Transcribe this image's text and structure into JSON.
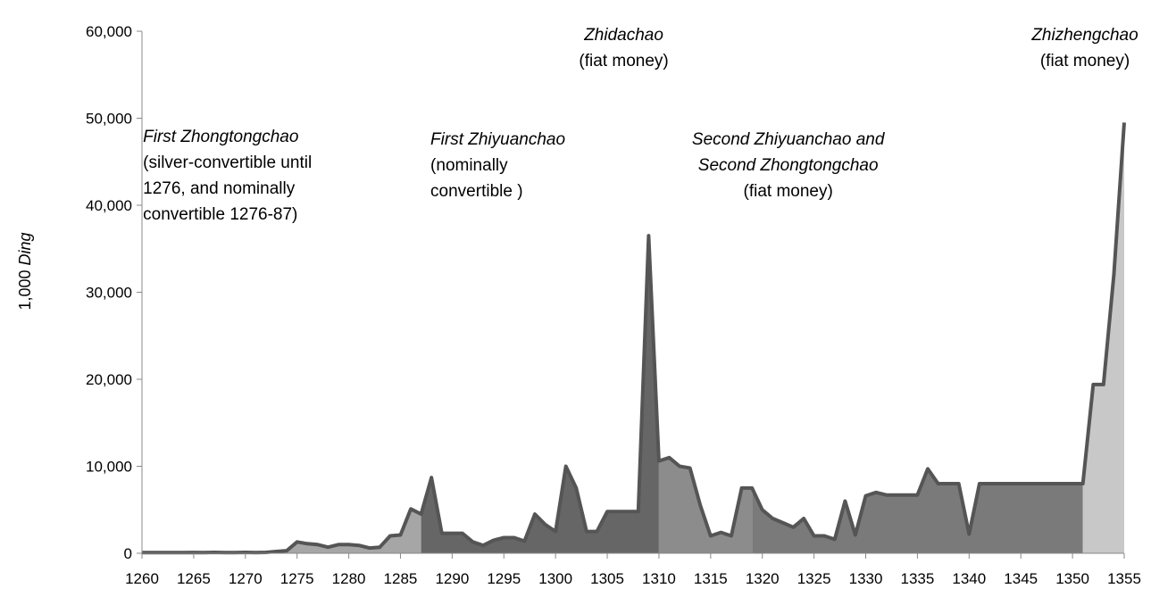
{
  "chart_data": {
    "type": "area",
    "ylabel_prefix": "1,000 ",
    "ylabel_italic": "Ding",
    "xlim": [
      1260,
      1355
    ],
    "ylim": [
      0,
      60000
    ],
    "x_ticks": [
      1260,
      1265,
      1270,
      1275,
      1280,
      1285,
      1290,
      1295,
      1300,
      1305,
      1310,
      1315,
      1320,
      1325,
      1330,
      1335,
      1340,
      1345,
      1350,
      1355
    ],
    "y_ticks": [
      "0",
      "10,000",
      "20,000",
      "30,000",
      "40,000",
      "50,000",
      "60,000"
    ],
    "y_tick_values": [
      0,
      10000,
      20000,
      30000,
      40000,
      50000,
      60000
    ],
    "grid": false,
    "line_color": "#555555",
    "x": [
      1260,
      1261,
      1262,
      1263,
      1264,
      1265,
      1266,
      1267,
      1268,
      1269,
      1270,
      1271,
      1272,
      1273,
      1274,
      1275,
      1276,
      1277,
      1278,
      1279,
      1280,
      1281,
      1282,
      1283,
      1284,
      1285,
      1286,
      1287,
      1288,
      1289,
      1290,
      1291,
      1292,
      1293,
      1294,
      1295,
      1296,
      1297,
      1298,
      1299,
      1300,
      1301,
      1302,
      1303,
      1304,
      1305,
      1306,
      1307,
      1308,
      1309,
      1310,
      1311,
      1312,
      1313,
      1314,
      1315,
      1316,
      1317,
      1318,
      1319,
      1320,
      1321,
      1322,
      1323,
      1324,
      1325,
      1326,
      1327,
      1328,
      1329,
      1330,
      1331,
      1332,
      1333,
      1334,
      1335,
      1336,
      1337,
      1338,
      1339,
      1340,
      1341,
      1342,
      1343,
      1344,
      1345,
      1346,
      1347,
      1348,
      1349,
      1350,
      1351,
      1352,
      1353,
      1354,
      1355
    ],
    "values": [
      74,
      74,
      74,
      74,
      74,
      96,
      74,
      100,
      74,
      74,
      100,
      74,
      100,
      200,
      300,
      1300,
      1100,
      1000,
      700,
      1000,
      1000,
      900,
      600,
      700,
      2000,
      2100,
      5100,
      4500,
      8700,
      2300,
      2300,
      2300,
      1300,
      900,
      1500,
      1800,
      1800,
      1400,
      4500,
      3300,
      2500,
      10000,
      7500,
      2500,
      2500,
      4800,
      4800,
      4800,
      4800,
      36500,
      10600,
      11000,
      10000,
      9800,
      5500,
      2000,
      2400,
      2000,
      7500,
      7500,
      5000,
      4000,
      3500,
      3000,
      4000,
      2000,
      2000,
      1600,
      6000,
      2100,
      6600,
      7000,
      6700,
      6700,
      6700,
      6700,
      9700,
      8000,
      8000,
      8000,
      2200,
      8000,
      8000,
      8000,
      8000,
      8000,
      8000,
      8000,
      8000,
      8000,
      8000,
      8000,
      19400,
      19400,
      32000,
      49500
    ],
    "regions": [
      {
        "from": 1260,
        "to": 1287,
        "fill": "#a6a6a6"
      },
      {
        "from": 1287,
        "to": 1310,
        "fill": "#666666"
      },
      {
        "from": 1310,
        "to": 1319,
        "fill": "#8c8c8c"
      },
      {
        "from": 1319,
        "to": 1351,
        "fill": "#7a7a7a"
      },
      {
        "from": 1351,
        "to": 1355,
        "fill": "#c8c8c8"
      }
    ],
    "annotations": [
      {
        "name": "annotation-first-zhongtongchao",
        "x": 1260.1,
        "y": 47300,
        "anchor": "start",
        "lines": [
          {
            "text": "First Zhongtongchao",
            "italic": true
          },
          {
            "text": "(silver-convertible until",
            "italic": false
          },
          {
            "text": "1276, and nominally",
            "italic": false
          },
          {
            "text": "convertible 1276-87)",
            "italic": false
          }
        ]
      },
      {
        "name": "annotation-first-zhiyuanchao",
        "x": 1287.9,
        "y": 47000,
        "anchor": "start",
        "lines": [
          {
            "text": "First Zhiyuanchao",
            "italic": true
          },
          {
            "text": "(nominally",
            "italic": false
          },
          {
            "text": "convertible )",
            "italic": false
          }
        ]
      },
      {
        "name": "annotation-zhidachao",
        "x": 1306.6,
        "y": 59000,
        "anchor": "middle",
        "lines": [
          {
            "text": "Zhidachao",
            "italic": true
          },
          {
            "text": "(fiat money)",
            "italic": false
          }
        ]
      },
      {
        "name": "annotation-second-zhiyuanchao",
        "x": 1322.5,
        "y": 47000,
        "anchor": "middle",
        "lines": [
          {
            "text": "Second Zhiyuanchao and",
            "italic": true
          },
          {
            "text": "Second Zhongtongchao",
            "italic": true
          },
          {
            "text": "(fiat money)",
            "italic": false
          }
        ]
      },
      {
        "name": "annotation-zhizhengchao",
        "x": 1351.2,
        "y": 59000,
        "anchor": "middle",
        "lines": [
          {
            "text": "Zhizhengchao",
            "italic": true
          },
          {
            "text": "(fiat money)",
            "italic": false
          }
        ]
      }
    ]
  }
}
